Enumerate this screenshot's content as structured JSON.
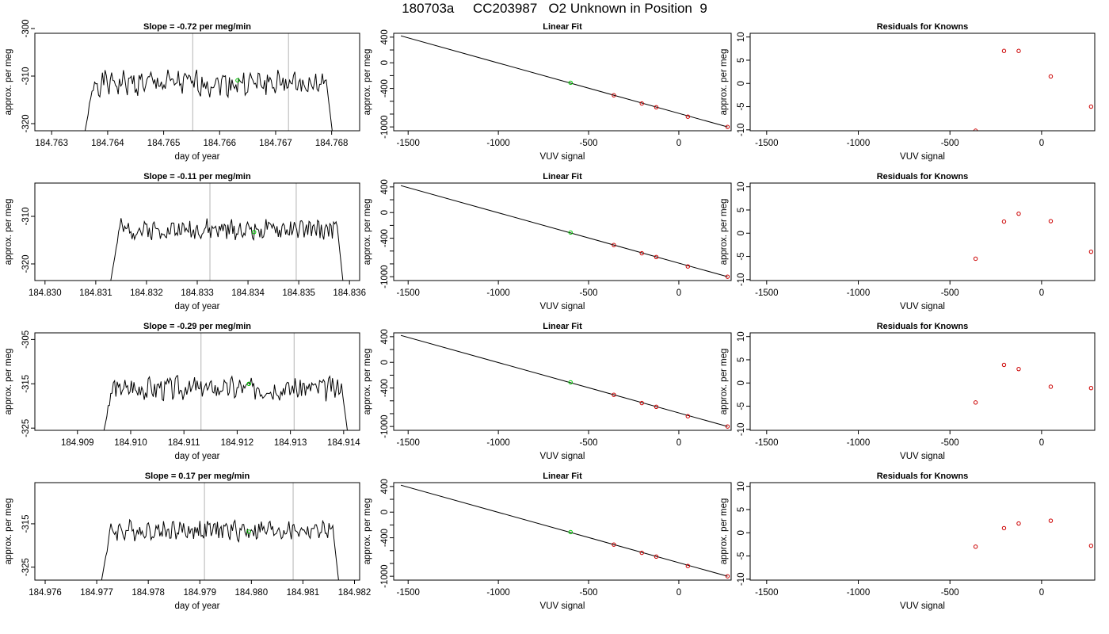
{
  "page_title": "180703a     CC203987   O2 Unknown in Position  9",
  "colors": {
    "trace": "#000000",
    "vline": "#c0c0c0",
    "unknown": "#00cc00",
    "known": "#cc0000",
    "fit": "#000000"
  },
  "chart_data": [
    {
      "type": "line",
      "panel": "time-1",
      "title": "Slope =  -0.72  per meg/min",
      "xlabel": "day of year",
      "ylabel": "approx. per meg",
      "xlim": [
        184.7627,
        184.7685
      ],
      "ylim": [
        -321.5,
        -301.0
      ],
      "xticks": [
        "184.763",
        "184.764",
        "184.765",
        "184.766",
        "184.767",
        "184.768"
      ],
      "yticks": [
        "-300",
        "-310",
        "-320"
      ],
      "vlines": [
        184.76552,
        184.76723
      ],
      "unknown_point": [
        184.76632,
        -310.9
      ],
      "trace": {
        "x_start": 184.76358,
        "x_end": 184.76802,
        "baseline": -311.5,
        "amplitude": 2.2,
        "seed": 1
      }
    },
    {
      "type": "line",
      "panel": "fit-1",
      "title": "Linear Fit",
      "xlabel": "VUV signal",
      "ylabel": "approx. per meg",
      "xlim": [
        -1580,
        290
      ],
      "ylim": [
        -1060,
        460
      ],
      "xticks": [
        "-1500",
        "-1000",
        "-500",
        "0"
      ],
      "yticks": [
        "400",
        "0",
        "-400",
        "-1000"
      ],
      "fit_line": {
        "x": [
          -1540,
          270
        ],
        "y": [
          420,
          -1000
        ]
      },
      "unknown_point": [
        -600,
        -311
      ],
      "knowns": {
        "x": [
          -360,
          -205,
          -125,
          50,
          270
        ],
        "y": [
          -506,
          -635,
          -693,
          -840,
          -1000
        ]
      }
    },
    {
      "type": "scatter",
      "panel": "resid-1",
      "title": "Residuals for Knowns",
      "xlabel": "VUV signal",
      "ylabel": "approx. per meg",
      "xlim": [
        -1590,
        290
      ],
      "ylim": [
        -10.2,
        10.8
      ],
      "xticks": [
        "-1500",
        "-1000",
        "-500",
        "0"
      ],
      "yticks": [
        "10",
        "5",
        "0",
        "-5",
        "-10"
      ],
      "x": [
        -360,
        -205,
        -125,
        50,
        270
      ],
      "y": [
        -10.2,
        7.0,
        7.0,
        1.5,
        -5.0
      ]
    },
    {
      "type": "line",
      "panel": "time-2",
      "title": "Slope =  -0.11  per meg/min",
      "xlabel": "day of year",
      "ylabel": "approx. per meg",
      "xlim": [
        184.8298,
        184.8362
      ],
      "ylim": [
        -323.5,
        -303.0
      ],
      "xticks": [
        "184.830",
        "184.831",
        "184.832",
        "184.833",
        "184.834",
        "184.835",
        "184.836"
      ],
      "yticks": [
        "-310",
        "-320"
      ],
      "vlines": [
        184.83325,
        184.83495
      ],
      "unknown_point": [
        184.83412,
        -313.3
      ],
      "trace": {
        "x_start": 184.83128,
        "x_end": 184.83588,
        "baseline": -312.8,
        "amplitude": 1.8,
        "seed": 2
      }
    },
    {
      "type": "line",
      "panel": "fit-2",
      "title": "Linear Fit",
      "xlabel": "VUV signal",
      "ylabel": "approx. per meg",
      "xlim": [
        -1580,
        290
      ],
      "ylim": [
        -1060,
        460
      ],
      "xticks": [
        "-1500",
        "-1000",
        "-500",
        "0"
      ],
      "yticks": [
        "400",
        "0",
        "-400",
        "-1000"
      ],
      "fit_line": {
        "x": [
          -1540,
          270
        ],
        "y": [
          420,
          -1000
        ]
      },
      "unknown_point": [
        -600,
        -311
      ],
      "knowns": {
        "x": [
          -360,
          -205,
          -125,
          50,
          270
        ],
        "y": [
          -506,
          -635,
          -693,
          -840,
          -1000
        ]
      }
    },
    {
      "type": "scatter",
      "panel": "resid-2",
      "title": "Residuals for Knowns",
      "xlabel": "VUV signal",
      "ylabel": "approx. per meg",
      "xlim": [
        -1590,
        290
      ],
      "ylim": [
        -10.2,
        10.8
      ],
      "xticks": [
        "-1500",
        "-1000",
        "-500",
        "0"
      ],
      "yticks": [
        "10",
        "5",
        "0",
        "-5",
        "-10"
      ],
      "x": [
        -360,
        -205,
        -125,
        50,
        270
      ],
      "y": [
        -5.5,
        2.5,
        4.2,
        2.6,
        -4.0
      ]
    },
    {
      "type": "line",
      "panel": "time-3",
      "title": "Slope =  -0.29  per meg/min",
      "xlabel": "day of year",
      "ylabel": "approx. per meg",
      "xlim": [
        184.9082,
        184.9143
      ],
      "ylim": [
        -325.5,
        -303.5
      ],
      "xticks": [
        "184.909",
        "184.910",
        "184.911",
        "184.912",
        "184.913",
        "184.914"
      ],
      "yticks": [
        "-305",
        "-315",
        "-325"
      ],
      "vlines": [
        184.91132,
        184.91307
      ],
      "unknown_point": [
        184.91222,
        -315.0
      ],
      "trace": {
        "x_start": 184.90948,
        "x_end": 184.91408,
        "baseline": -316.0,
        "amplitude": 2.3,
        "seed": 3
      }
    },
    {
      "type": "line",
      "panel": "fit-3",
      "title": "Linear Fit",
      "xlabel": "VUV signal",
      "ylabel": "approx. per meg",
      "xlim": [
        -1580,
        290
      ],
      "ylim": [
        -1060,
        460
      ],
      "xticks": [
        "-1500",
        "-1000",
        "-500",
        "0"
      ],
      "yticks": [
        "400",
        "0",
        "-400",
        "-1000"
      ],
      "fit_line": {
        "x": [
          -1540,
          270
        ],
        "y": [
          420,
          -1000
        ]
      },
      "unknown_point": [
        -600,
        -311
      ],
      "knowns": {
        "x": [
          -360,
          -205,
          -125,
          50,
          270
        ],
        "y": [
          -506,
          -635,
          -693,
          -840,
          -1000
        ]
      }
    },
    {
      "type": "scatter",
      "panel": "resid-3",
      "title": "Residuals for Knowns",
      "xlabel": "VUV signal",
      "ylabel": "approx. per meg",
      "xlim": [
        -1590,
        290
      ],
      "ylim": [
        -10.2,
        10.8
      ],
      "x": [
        -360,
        -205,
        -125,
        50,
        270
      ],
      "y": [
        -4.2,
        3.9,
        3.0,
        -0.8,
        -1.1
      ],
      "xticks": [
        "-1500",
        "-1000",
        "-500",
        "0"
      ],
      "yticks": [
        "10",
        "5",
        "0",
        "-5",
        "-10"
      ]
    },
    {
      "type": "line",
      "panel": "time-4",
      "title": "Slope =  0.17  per meg/min",
      "xlabel": "day of year",
      "ylabel": "approx. per meg",
      "xlim": [
        184.9758,
        184.9821
      ],
      "ylim": [
        -328.0,
        -305.5
      ],
      "xticks": [
        "184.976",
        "184.977",
        "184.978",
        "184.979",
        "184.980",
        "184.981",
        "184.982"
      ],
      "yticks": [
        "-315",
        "-325"
      ],
      "vlines": [
        184.97909,
        184.98081
      ],
      "unknown_point": [
        184.97995,
        -316.8
      ],
      "trace": {
        "x_start": 184.97708,
        "x_end": 184.9817,
        "baseline": -316.5,
        "amplitude": 2.0,
        "seed": 4
      }
    },
    {
      "type": "line",
      "panel": "fit-4",
      "title": "Linear Fit",
      "xlabel": "VUV signal",
      "ylabel": "approx. per meg",
      "xlim": [
        -1580,
        290
      ],
      "ylim": [
        -1060,
        460
      ],
      "xticks": [
        "-1500",
        "-1000",
        "-500",
        "0"
      ],
      "yticks": [
        "400",
        "0",
        "-400",
        "-1000"
      ],
      "fit_line": {
        "x": [
          -1540,
          270
        ],
        "y": [
          420,
          -1000
        ]
      },
      "unknown_point": [
        -600,
        -311
      ],
      "knowns": {
        "x": [
          -360,
          -205,
          -125,
          50,
          270
        ],
        "y": [
          -506,
          -635,
          -693,
          -840,
          -1000
        ]
      }
    },
    {
      "type": "scatter",
      "panel": "resid-4",
      "title": "Residuals for Knowns",
      "xlabel": "VUV signal",
      "ylabel": "approx. per meg",
      "xlim": [
        -1590,
        290
      ],
      "ylim": [
        -10.2,
        10.8
      ],
      "xticks": [
        "-1500",
        "-1000",
        "-500",
        "0"
      ],
      "yticks": [
        "10",
        "5",
        "0",
        "-5",
        "-10"
      ],
      "x": [
        -360,
        -205,
        -125,
        50,
        270
      ],
      "y": [
        -3.0,
        1.0,
        2.0,
        2.6,
        -2.8
      ]
    }
  ]
}
